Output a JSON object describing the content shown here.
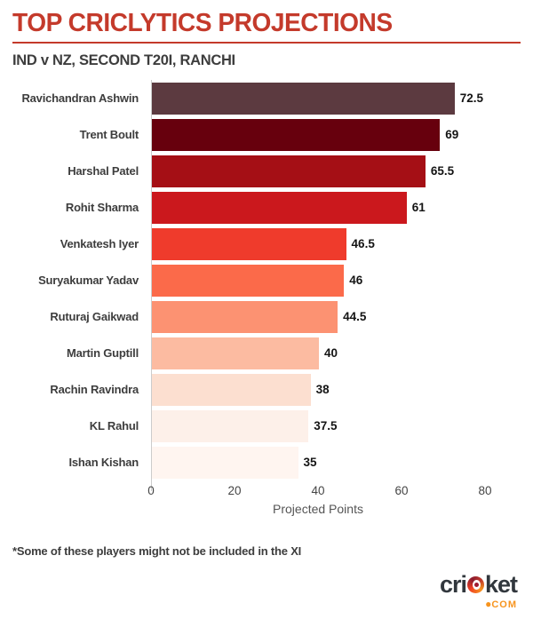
{
  "header": {
    "title": "TOP CRICLYTICS PROJECTIONS",
    "subtitle": "IND v NZ, SECOND T20I, RANCHI"
  },
  "chart_data": {
    "type": "bar",
    "orientation": "horizontal",
    "title": "TOP CRICLYTICS PROJECTIONS",
    "subtitle": "IND v NZ, SECOND T20I, RANCHI",
    "categories": [
      "Ravichandran Ashwin",
      "Trent Boult",
      "Harshal Patel",
      "Rohit Sharma",
      "Venkatesh Iyer",
      "Suryakumar Yadav",
      "Ruturaj Gaikwad",
      "Martin Guptill",
      "Rachin Ravindra",
      "KL Rahul",
      "Ishan Kishan"
    ],
    "values": [
      72.5,
      69,
      65.5,
      61,
      46.5,
      46,
      44.5,
      40,
      38,
      37.5,
      35
    ],
    "value_labels": [
      "72.5",
      "69",
      "65.5",
      "61",
      "46.5",
      "46",
      "44.5",
      "40",
      "38",
      "37.5",
      "35"
    ],
    "bar_colors": [
      "#5C3A40",
      "#67000D",
      "#A50F15",
      "#CB181D",
      "#EF3B2C",
      "#FB6A4A",
      "#FC9272",
      "#FCBBA1",
      "#FCDFD0",
      "#FDF0E9",
      "#FFF5F0"
    ],
    "xlabel": "Projected Points",
    "ylabel": "",
    "xlim": [
      0,
      80
    ],
    "xticks": [
      0,
      20,
      40,
      60,
      80
    ],
    "grid": false,
    "legend": "none"
  },
  "footnote": "*Some of these players might not be included in the XI",
  "branding": {
    "logo_pre": "cri",
    "logo_post": "ket",
    "logo_com": "COM",
    "logo_dot": "●",
    "logo_text_color": "#31373D",
    "logo_accent_color": "#F7941E"
  },
  "colors": {
    "accent_red": "#C43A2B",
    "subtitle_gray": "#3D3D3D",
    "axis_line": "#cccccc",
    "background": "#ffffff"
  }
}
